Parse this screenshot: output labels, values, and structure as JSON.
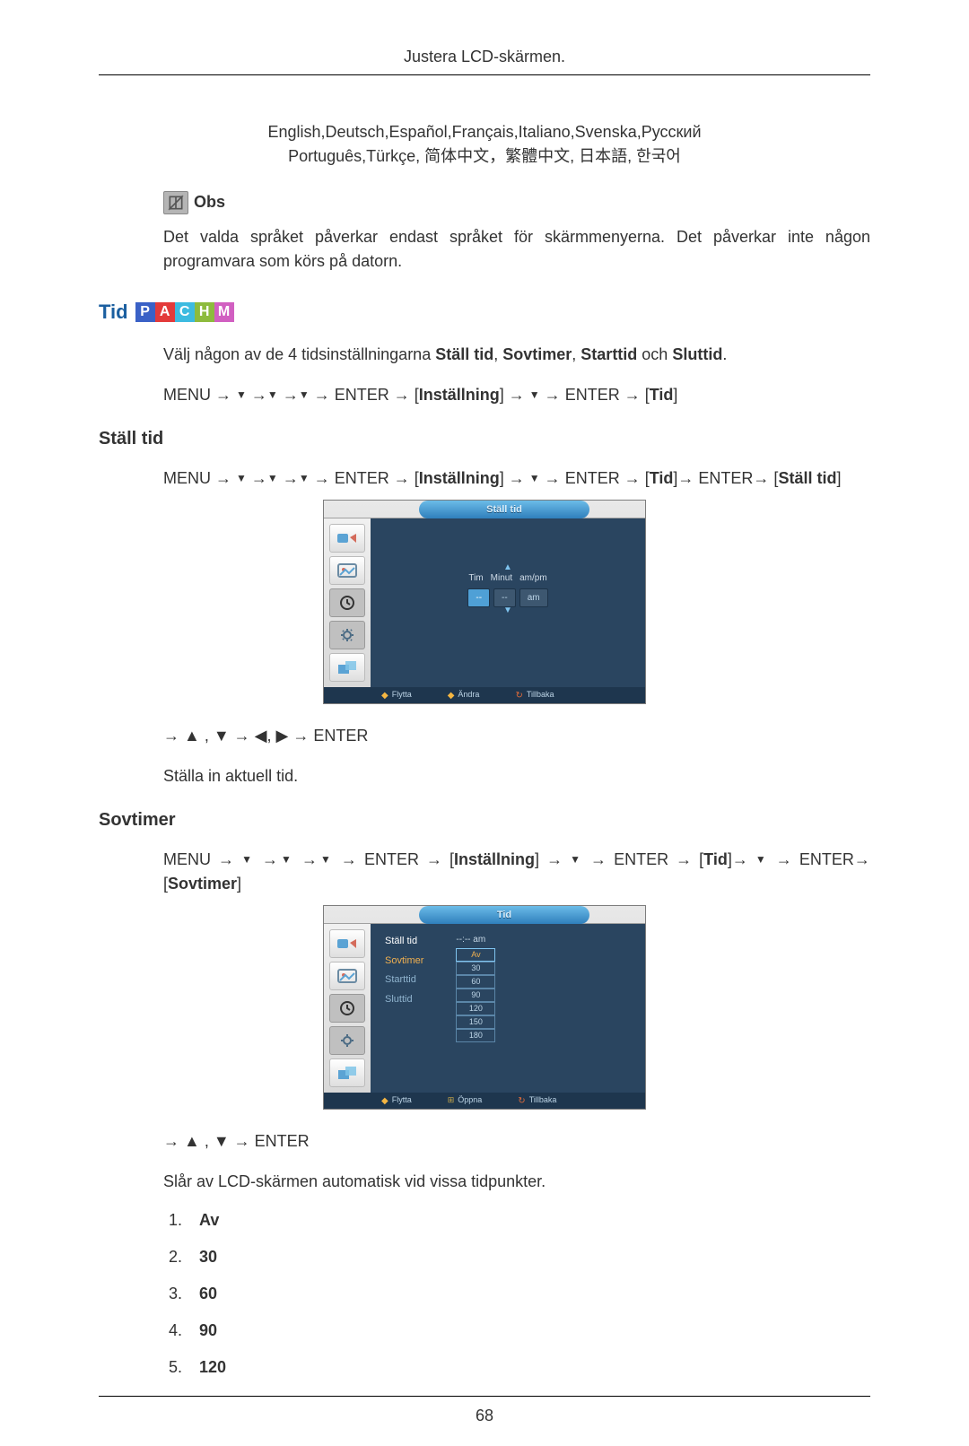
{
  "header": {
    "title": "Justera LCD-skärmen."
  },
  "languages": {
    "line1": "English,Deutsch,Español,Français,Italiano,Svenska,Русский",
    "line2": "Português,Türkçe, 简体中文，繁體中文, 日本語, 한국어"
  },
  "obs": {
    "label": "Obs",
    "text": "Det valda språket påverkar endast språket för skärmmenyerna. Det påverkar inte någon programvara som körs på datorn."
  },
  "tid": {
    "title": "Tid",
    "pachm_colors": [
      "#3a61c6",
      "#e33a3a",
      "#3dbbe0",
      "#8dbb3d",
      "#d15fc1"
    ],
    "pachm_letters": [
      "P",
      "A",
      "C",
      "H",
      "M"
    ],
    "intro_before": "Välj någon av de 4 tidsinställningarna ",
    "b1": "Ställ tid",
    "c1": ", ",
    "b2": "Sovtimer",
    "c2": ", ",
    "b3": "Starttid",
    "c3": " och ",
    "b4": "Sluttid",
    "c4": ".",
    "nav": {
      "menu": "MENU",
      "enter": "ENTER",
      "installning": "Inställning",
      "tid": "Tid"
    }
  },
  "stalltid": {
    "title": "Ställ tid",
    "end": "Ställ tid",
    "keys": "→ ▲ , ▼ → ◀, ▶ → ENTER",
    "desc": "Ställa in aktuell tid.",
    "osd": {
      "tab": "Ställ tid",
      "labels": [
        "Tim",
        "Minut",
        "am/pm"
      ],
      "values": [
        "--",
        "--",
        "am"
      ],
      "footer": [
        "Flytta",
        "Ändra",
        "Tillbaka"
      ]
    }
  },
  "sovtimer": {
    "title": "Sovtimer",
    "end": "Sovtimer",
    "keys": "→ ▲ , ▼ → ENTER",
    "desc": "Slår av LCD-skärmen automatisk vid vissa tidpunkter.",
    "osd": {
      "tab": "Tid",
      "left": [
        "Ställ tid",
        "Sovtimer",
        "Starttid",
        "Sluttid"
      ],
      "time_label": "--:-- am",
      "opts": [
        "Av",
        "30",
        "60",
        "90",
        "120",
        "150",
        "180"
      ],
      "footer": [
        "Flytta",
        "Öppna",
        "Tillbaka"
      ]
    },
    "options": [
      "Av",
      "30",
      "60",
      "90",
      "120"
    ]
  },
  "page_number": "68"
}
